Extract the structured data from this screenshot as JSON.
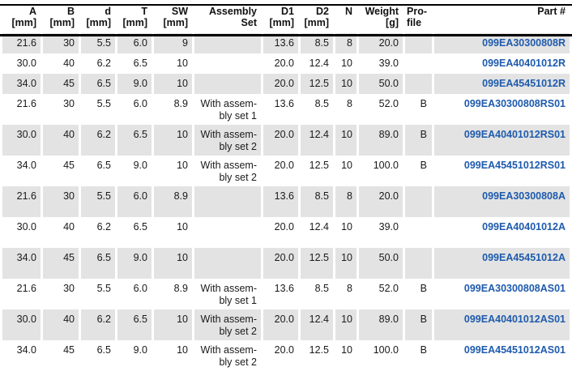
{
  "colors": {
    "part_number_blue": "#1e5bad",
    "row_shade_gray": "#e3e3e3",
    "header_rule_black": "#000000"
  },
  "table": {
    "columns": [
      {
        "key": "a",
        "label": "A\n[mm]"
      },
      {
        "key": "b",
        "label": "B\n[mm]"
      },
      {
        "key": "d",
        "label": "d\n[mm]"
      },
      {
        "key": "t",
        "label": "T\n[mm]"
      },
      {
        "key": "sw",
        "label": "SW\n[mm]"
      },
      {
        "key": "assembly",
        "label": "Assembly\nSet"
      },
      {
        "key": "d1",
        "label": "D1\n[mm]"
      },
      {
        "key": "d2",
        "label": "D2\n[mm]"
      },
      {
        "key": "n",
        "label": "N"
      },
      {
        "key": "weight",
        "label": "Weight\n[g]"
      },
      {
        "key": "profile",
        "label": "Pro-\nfile"
      },
      {
        "key": "part",
        "label": "Part #"
      }
    ],
    "rows": [
      {
        "a": "21.6",
        "b": "30",
        "d": "5.5",
        "t": "6.0",
        "sw": "9",
        "assembly": "",
        "d1": "13.6",
        "d2": "8.5",
        "n": "8",
        "weight": "20.0",
        "profile": "",
        "part": "099EA30300808R"
      },
      {
        "a": "30.0",
        "b": "40",
        "d": "6.2",
        "t": "6.5",
        "sw": "10",
        "assembly": "",
        "d1": "20.0",
        "d2": "12.4",
        "n": "10",
        "weight": "39.0",
        "profile": "",
        "part": "099EA40401012R"
      },
      {
        "a": "34.0",
        "b": "45",
        "d": "6.5",
        "t": "9.0",
        "sw": "10",
        "assembly": "",
        "d1": "20.0",
        "d2": "12.5",
        "n": "10",
        "weight": "50.0",
        "profile": "",
        "part": "099EA45451012R"
      },
      {
        "a": "21.6",
        "b": "30",
        "d": "5.5",
        "t": "6.0",
        "sw": "8.9",
        "assembly": "With assem-\nbly set 1",
        "d1": "13.6",
        "d2": "8.5",
        "n": "8",
        "weight": "52.0",
        "profile": "B",
        "part": "099EA30300808RS01"
      },
      {
        "a": "30.0",
        "b": "40",
        "d": "6.2",
        "t": "6.5",
        "sw": "10",
        "assembly": "With assem-\nbly set 2",
        "d1": "20.0",
        "d2": "12.4",
        "n": "10",
        "weight": "89.0",
        "profile": "B",
        "part": "099EA40401012RS01"
      },
      {
        "a": "34.0",
        "b": "45",
        "d": "6.5",
        "t": "9.0",
        "sw": "10",
        "assembly": "With assem-\nbly set 2",
        "d1": "20.0",
        "d2": "12.5",
        "n": "10",
        "weight": "100.0",
        "profile": "B",
        "part": "099EA45451012RS01"
      },
      {
        "a": "21.6",
        "b": "30",
        "d": "5.5",
        "t": "6.0",
        "sw": "8.9",
        "assembly": "",
        "d1": "13.6",
        "d2": "8.5",
        "n": "8",
        "weight": "20.0",
        "profile": "",
        "part": "099EA30300808A"
      },
      {
        "a": "30.0",
        "b": "40",
        "d": "6.2",
        "t": "6.5",
        "sw": "10",
        "assembly": "",
        "d1": "20.0",
        "d2": "12.4",
        "n": "10",
        "weight": "39.0",
        "profile": "",
        "part": "099EA40401012A"
      },
      {
        "a": "34.0",
        "b": "45",
        "d": "6.5",
        "t": "9.0",
        "sw": "10",
        "assembly": "",
        "d1": "20.0",
        "d2": "12.5",
        "n": "10",
        "weight": "50.0",
        "profile": "",
        "part": "099EA45451012A"
      },
      {
        "a": "21.6",
        "b": "30",
        "d": "5.5",
        "t": "6.0",
        "sw": "8.9",
        "assembly": "With assem-\nbly set 1",
        "d1": "13.6",
        "d2": "8.5",
        "n": "8",
        "weight": "52.0",
        "profile": "B",
        "part": "099EA30300808AS01"
      },
      {
        "a": "30.0",
        "b": "40",
        "d": "6.2",
        "t": "6.5",
        "sw": "10",
        "assembly": "With assem-\nbly set 2",
        "d1": "20.0",
        "d2": "12.4",
        "n": "10",
        "weight": "89.0",
        "profile": "B",
        "part": "099EA40401012AS01"
      },
      {
        "a": "34.0",
        "b": "45",
        "d": "6.5",
        "t": "9.0",
        "sw": "10",
        "assembly": "With assem-\nbly set 2",
        "d1": "20.0",
        "d2": "12.5",
        "n": "10",
        "weight": "100.0",
        "profile": "B",
        "part": "099EA45451012AS01"
      }
    ]
  }
}
